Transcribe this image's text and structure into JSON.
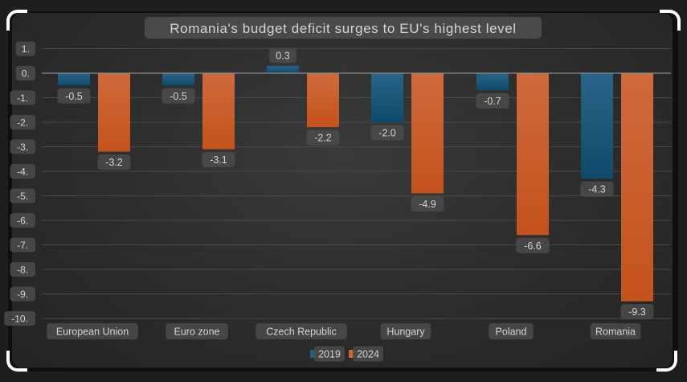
{
  "chart_data": {
    "type": "bar",
    "title": "Romania's budget deficit surges to EU's highest level",
    "xlabel": "",
    "ylabel": "",
    "categories": [
      "European Union",
      "Euro zone",
      "Czech Republic",
      "Hungary",
      "Poland",
      "Romania"
    ],
    "series": [
      {
        "name": "2019",
        "color": "#1f5e82",
        "values": [
          -0.5,
          -0.5,
          0.3,
          -2.0,
          -0.7,
          -4.3
        ],
        "labels": [
          "-0.5",
          "-0.5",
          "0.3",
          "-2.0",
          "-0.7",
          "-4.3"
        ]
      },
      {
        "name": "2024",
        "color": "#d2622a",
        "values": [
          -3.2,
          -3.1,
          -2.2,
          -4.9,
          -6.6,
          -9.3
        ],
        "labels": [
          "-3.2",
          "-3.1",
          "-2.2",
          "-4.9",
          "-6.6",
          "-9.3"
        ]
      }
    ],
    "ylim": [
      -10,
      1
    ],
    "yticks": [
      1,
      0,
      -1,
      -2,
      -3,
      -4,
      -5,
      -6,
      -7,
      -8,
      -9,
      -10
    ],
    "ytick_labels": [
      "1.",
      "0.",
      "-1.",
      "-2.",
      "-3.",
      "-4.",
      "-5.",
      "-6.",
      "-7.",
      "-8.",
      "-9.",
      "-10."
    ],
    "grid": true,
    "legend_position": "bottom-center"
  }
}
